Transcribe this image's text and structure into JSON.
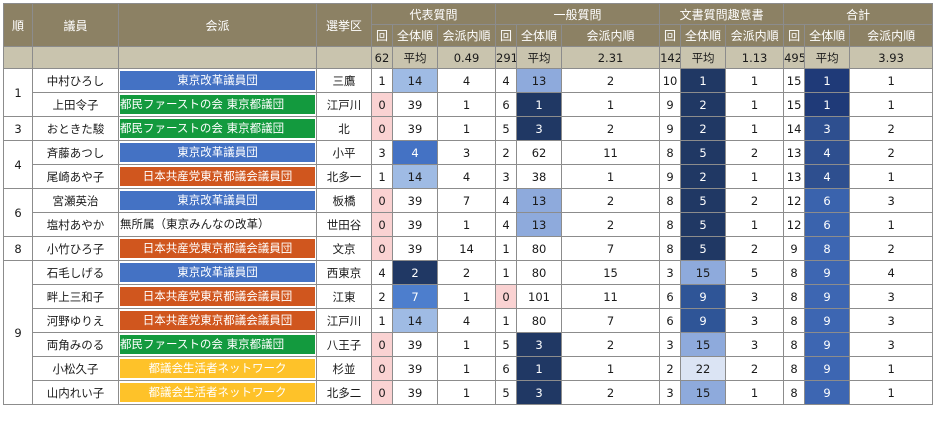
{
  "headers": {
    "rank": "順",
    "member": "議員",
    "faction": "会派",
    "district": "選挙区",
    "groups": [
      "代表質問",
      "一般質問",
      "文書質問趣意書",
      "合計"
    ],
    "sub": [
      "回",
      "全体順",
      "会派内順"
    ]
  },
  "summary": [
    {
      "count": "62",
      "label": "平均",
      "avg": "0.49"
    },
    {
      "count": "291",
      "label": "平均",
      "avg": "2.31"
    },
    {
      "count": "142",
      "label": "平均",
      "avg": "1.13"
    },
    {
      "count": "495",
      "label": "平均",
      "avg": "3.93"
    }
  ],
  "factions": {
    "blue": {
      "name": "東京改革議員団",
      "color": "#4472c4"
    },
    "green": {
      "name": "都民ファーストの会 東京都議団",
      "color": "#139a3e"
    },
    "red": {
      "name": "日本共産党東京都議会議員団",
      "color": "#d0561e"
    },
    "yellow": {
      "name": "都議会生活者ネットワーク",
      "color": "#fec229"
    },
    "none": {
      "name": "無所属（東京みんなの改革）",
      "color": "#ffffff"
    }
  },
  "rows": [
    {
      "rank": "1",
      "rowspan": 2,
      "name": "中村ひろし",
      "faction": "blue",
      "district": "三鷹",
      "v": [
        [
          "1",
          "14",
          "4"
        ],
        [
          "4",
          "13",
          "2"
        ],
        [
          "10",
          "1",
          "1"
        ],
        [
          "15",
          "1",
          "1"
        ]
      ]
    },
    {
      "name": "上田令子",
      "faction": "green",
      "district": "江戸川",
      "v": [
        [
          "0",
          "39",
          "1"
        ],
        [
          "6",
          "1",
          "1"
        ],
        [
          "9",
          "2",
          "1"
        ],
        [
          "15",
          "1",
          "1"
        ]
      ]
    },
    {
      "rank": "3",
      "rowspan": 1,
      "name": "おときた駿",
      "faction": "green",
      "district": "北",
      "v": [
        [
          "0",
          "39",
          "1"
        ],
        [
          "5",
          "3",
          "2"
        ],
        [
          "9",
          "2",
          "1"
        ],
        [
          "14",
          "3",
          "2"
        ]
      ]
    },
    {
      "rank": "4",
      "rowspan": 2,
      "name": "斉藤あつし",
      "faction": "blue",
      "district": "小平",
      "v": [
        [
          "3",
          "4",
          "3"
        ],
        [
          "2",
          "62",
          "11"
        ],
        [
          "8",
          "5",
          "2"
        ],
        [
          "13",
          "4",
          "2"
        ]
      ]
    },
    {
      "name": "尾崎あや子",
      "faction": "red",
      "district": "北多一",
      "v": [
        [
          "1",
          "14",
          "4"
        ],
        [
          "3",
          "38",
          "1"
        ],
        [
          "9",
          "2",
          "1"
        ],
        [
          "13",
          "4",
          "1"
        ]
      ]
    },
    {
      "rank": "6",
      "rowspan": 2,
      "name": "宮瀬英治",
      "faction": "blue",
      "district": "板橋",
      "v": [
        [
          "0",
          "39",
          "7"
        ],
        [
          "4",
          "13",
          "2"
        ],
        [
          "8",
          "5",
          "2"
        ],
        [
          "12",
          "6",
          "3"
        ]
      ]
    },
    {
      "name": "塩村あやか",
      "faction": "none",
      "district": "世田谷",
      "v": [
        [
          "0",
          "39",
          "1"
        ],
        [
          "4",
          "13",
          "2"
        ],
        [
          "8",
          "5",
          "1"
        ],
        [
          "12",
          "6",
          "1"
        ]
      ]
    },
    {
      "rank": "8",
      "rowspan": 1,
      "name": "小竹ひろ子",
      "faction": "red",
      "district": "文京",
      "v": [
        [
          "0",
          "39",
          "14"
        ],
        [
          "1",
          "80",
          "7"
        ],
        [
          "8",
          "5",
          "2"
        ],
        [
          "9",
          "8",
          "2"
        ]
      ]
    },
    {
      "rank": "9",
      "rowspan": 7,
      "name": "石毛しげる",
      "faction": "blue",
      "district": "西東京",
      "v": [
        [
          "4",
          "2",
          "2"
        ],
        [
          "1",
          "80",
          "15"
        ],
        [
          "3",
          "15",
          "5"
        ],
        [
          "8",
          "9",
          "4"
        ]
      ]
    },
    {
      "name": "畔上三和子",
      "faction": "red",
      "district": "江東",
      "v": [
        [
          "2",
          "7",
          "1"
        ],
        [
          "0",
          "101",
          "11"
        ],
        [
          "6",
          "9",
          "3"
        ],
        [
          "8",
          "9",
          "3"
        ]
      ]
    },
    {
      "name": "河野ゆりえ",
      "faction": "red",
      "district": "江戸川",
      "v": [
        [
          "1",
          "14",
          "4"
        ],
        [
          "1",
          "80",
          "7"
        ],
        [
          "6",
          "9",
          "3"
        ],
        [
          "8",
          "9",
          "3"
        ]
      ]
    },
    {
      "name": "両角みのる",
      "faction": "green",
      "district": "八王子",
      "v": [
        [
          "0",
          "39",
          "1"
        ],
        [
          "5",
          "3",
          "2"
        ],
        [
          "3",
          "15",
          "3"
        ],
        [
          "8",
          "9",
          "3"
        ]
      ]
    },
    {
      "name": "小松久子",
      "faction": "yellow",
      "district": "杉並",
      "v": [
        [
          "0",
          "39",
          "1"
        ],
        [
          "6",
          "1",
          "1"
        ],
        [
          "2",
          "22",
          "2"
        ],
        [
          "8",
          "9",
          "1"
        ]
      ]
    },
    {
      "name": "山内れい子",
      "faction": "yellow",
      "district": "北多二",
      "v": [
        [
          "0",
          "39",
          "1"
        ],
        [
          "5",
          "3",
          "2"
        ],
        [
          "3",
          "15",
          "1"
        ],
        [
          "8",
          "9",
          "1"
        ]
      ]
    }
  ]
}
